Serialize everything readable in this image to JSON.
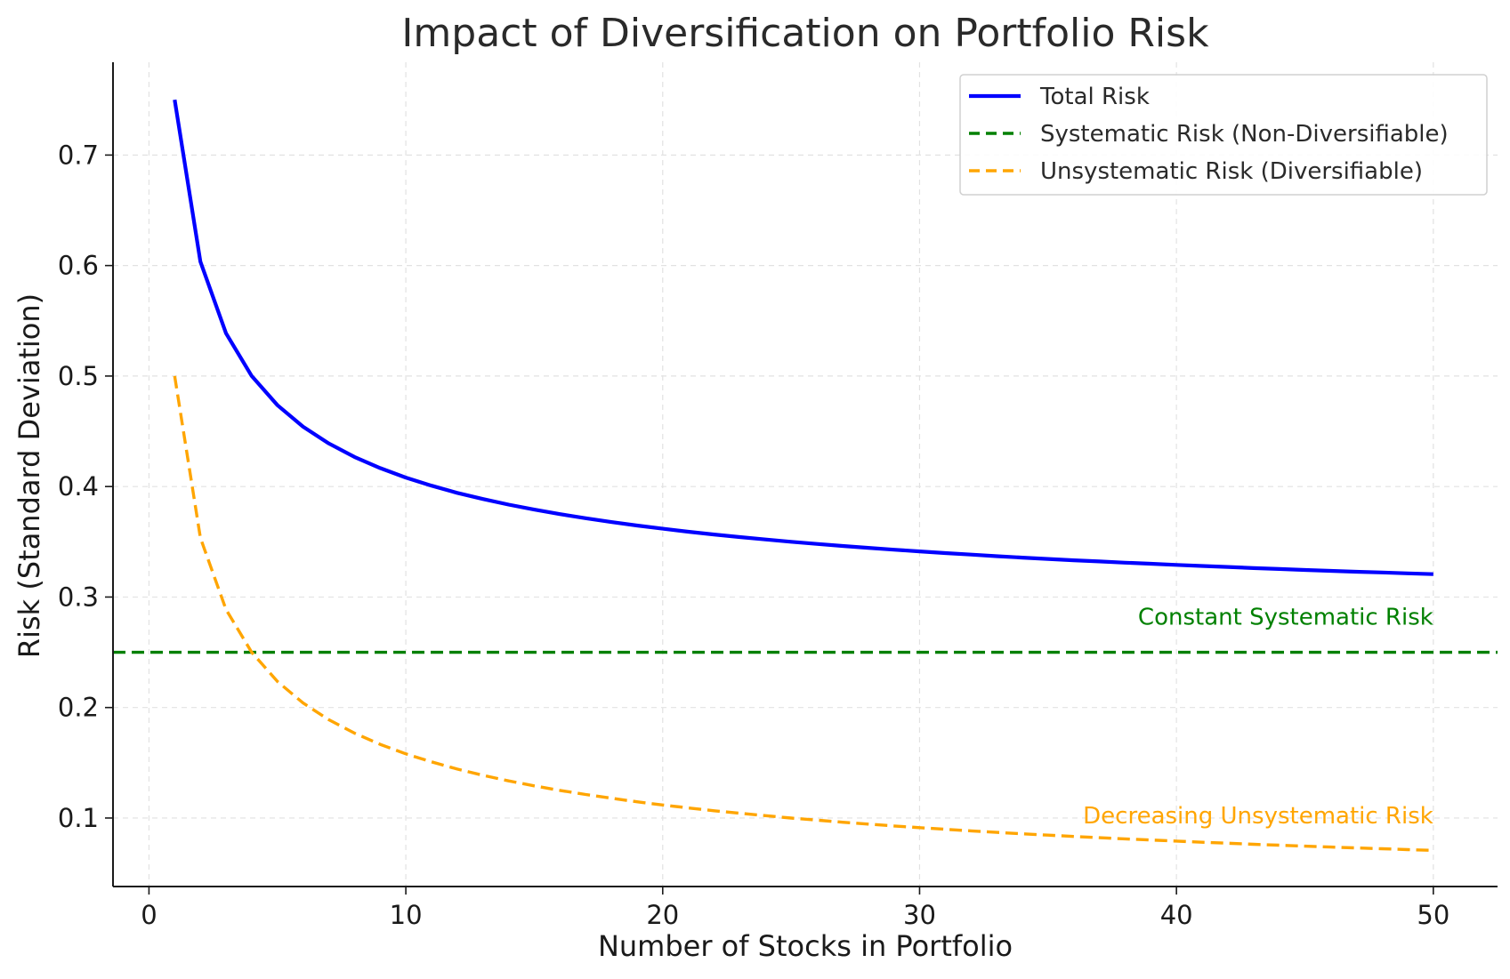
{
  "chart_data": {
    "type": "line",
    "title": "Impact of Diversification on Portfolio Risk",
    "xlabel": "Number of Stocks in Portfolio",
    "ylabel": "Risk (Standard Deviation)",
    "xlim": [
      -1.4,
      52.5
    ],
    "ylim": [
      0.038,
      0.784
    ],
    "xticks": [
      0,
      10,
      20,
      30,
      40,
      50
    ],
    "yticks": [
      0.1,
      0.2,
      0.3,
      0.4,
      0.5,
      0.6,
      0.7
    ],
    "grid": true,
    "legend_position": "top-right",
    "x": [
      1,
      2,
      3,
      4,
      5,
      6,
      7,
      8,
      9,
      10,
      11,
      12,
      13,
      14,
      15,
      16,
      17,
      18,
      19,
      20,
      21,
      22,
      23,
      24,
      25,
      26,
      27,
      28,
      29,
      30,
      31,
      32,
      33,
      34,
      35,
      36,
      37,
      38,
      39,
      40,
      41,
      42,
      43,
      44,
      45,
      46,
      47,
      48,
      49,
      50
    ],
    "series": [
      {
        "name": "Total Risk",
        "color": "#0000ff",
        "style": "solid",
        "values": [
          0.75,
          0.6036,
          0.5387,
          0.5,
          0.4736,
          0.4541,
          0.439,
          0.4268,
          0.4167,
          0.4081,
          0.4008,
          0.3943,
          0.3887,
          0.3836,
          0.3791,
          0.375,
          0.3713,
          0.3679,
          0.3647,
          0.3618,
          0.3591,
          0.3566,
          0.3543,
          0.3521,
          0.35,
          0.3481,
          0.3462,
          0.3445,
          0.3428,
          0.3413,
          0.3398,
          0.3384,
          0.337,
          0.3357,
          0.3345,
          0.3333,
          0.3322,
          0.3311,
          0.3301,
          0.3291,
          0.3281,
          0.3272,
          0.3262,
          0.3254,
          0.3245,
          0.3237,
          0.3229,
          0.3222,
          0.3214,
          0.3207
        ]
      },
      {
        "name": "Systematic Risk (Non-Diversifiable)",
        "color": "#008000",
        "style": "dashed",
        "constant": 0.25
      },
      {
        "name": "Unsystematic Risk (Diversifiable)",
        "color": "#ffa500",
        "style": "dashed",
        "values": [
          0.5,
          0.3536,
          0.2887,
          0.25,
          0.2236,
          0.2041,
          0.189,
          0.1768,
          0.1667,
          0.1581,
          0.1508,
          0.1443,
          0.1387,
          0.1336,
          0.1291,
          0.125,
          0.1213,
          0.1179,
          0.1147,
          0.1118,
          0.1091,
          0.1066,
          0.1043,
          0.1021,
          0.1,
          0.0981,
          0.0962,
          0.0945,
          0.0928,
          0.0913,
          0.0898,
          0.0884,
          0.087,
          0.0857,
          0.0845,
          0.0833,
          0.0822,
          0.0811,
          0.0801,
          0.0791,
          0.0781,
          0.0772,
          0.0762,
          0.0754,
          0.0745,
          0.0737,
          0.0729,
          0.0722,
          0.0714,
          0.0707
        ]
      }
    ],
    "annotations": [
      {
        "text": "Constant Systematic Risk",
        "x": 50,
        "y": 0.275,
        "color": "#008000"
      },
      {
        "text": "Decreasing Unsystematic Risk",
        "x": 50,
        "y": 0.095,
        "color": "#ffa500"
      }
    ]
  }
}
